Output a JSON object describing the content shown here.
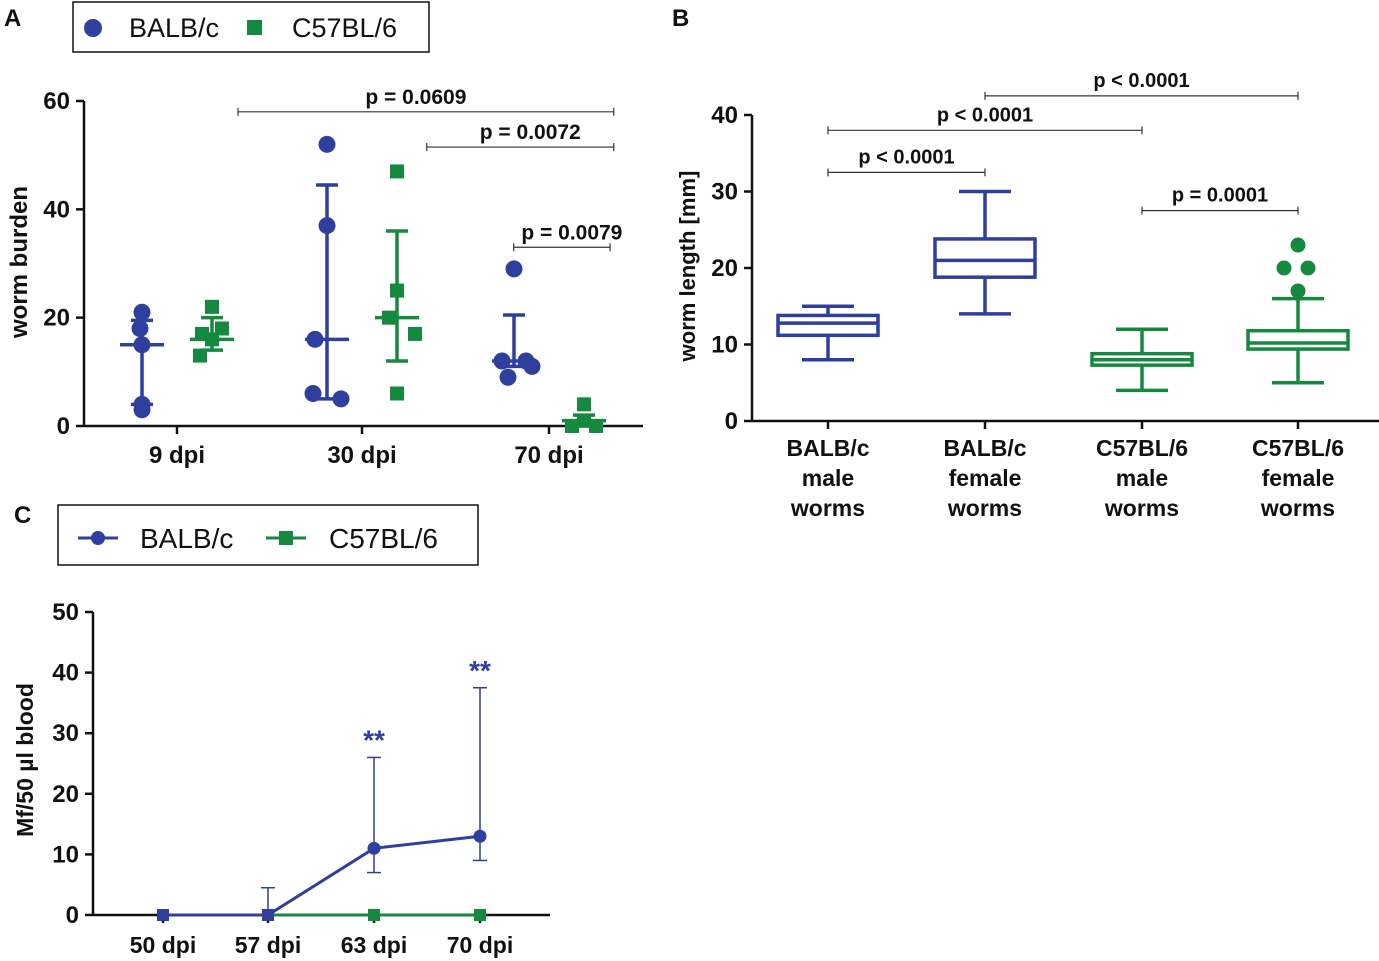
{
  "colors": {
    "balb": "#2E3F9E",
    "c57": "#15893E",
    "axis": "#111111",
    "bracket": "#333333"
  },
  "chart_data": [
    {
      "panel": "A",
      "type": "scatter",
      "legend": [
        "BALB/c",
        "C57BL/6"
      ],
      "ylabel": "worm burden",
      "ylim": [
        0,
        60
      ],
      "yticks": [
        "0",
        "20",
        "40",
        "60"
      ],
      "categories": [
        "9 dpi",
        "30 dpi",
        "70 dpi"
      ],
      "series": [
        {
          "name": "BALB/c",
          "points": [
            [
              21,
              18,
              15,
              4,
              3
            ],
            [
              52,
              37,
              16,
              6,
              5
            ],
            [
              29,
              12,
              12,
              11,
              9
            ]
          ],
          "median": [
            15,
            16,
            12
          ],
          "err": [
            [
              4,
              19.5
            ],
            [
              5,
              44.5
            ],
            [
              11,
              20.5
            ]
          ]
        },
        {
          "name": "C57BL/6",
          "points": [
            [
              22,
              18,
              17,
              16,
              13
            ],
            [
              47,
              25,
              20,
              17,
              6
            ],
            [
              4,
              1,
              1,
              0,
              0
            ]
          ],
          "median": [
            16,
            20,
            1
          ],
          "err": [
            [
              14,
              20
            ],
            [
              12,
              36
            ],
            [
              0,
              2
            ]
          ]
        }
      ],
      "comparisons": [
        {
          "text": "p = 0.0609",
          "x1": -0.67,
          "x2": 1.35,
          "y": 58
        },
        {
          "text": "p = 0.0072",
          "x1": 0.35,
          "x2": 1.35,
          "y": 51.5
        },
        {
          "text": "p = 0.0079",
          "x1": 0.82,
          "x2": 1.33,
          "y": 33
        }
      ]
    },
    {
      "panel": "B",
      "type": "boxplot",
      "ylabel": "worm length [mm]",
      "ylim": [
        0,
        40
      ],
      "yticks": [
        "0",
        "10",
        "20",
        "30",
        "40"
      ],
      "categories": [
        [
          "BALB/c",
          "male",
          "worms"
        ],
        [
          "BALB/c",
          "female",
          "worms"
        ],
        [
          "C57BL/6",
          "male",
          "worms"
        ],
        [
          "C57BL/6",
          "female",
          "worms"
        ]
      ],
      "boxes": [
        {
          "min": 8,
          "q1": 11.2,
          "median": 12.8,
          "q3": 13.8,
          "max": 15,
          "series": "BALB/c"
        },
        {
          "min": 14,
          "q1": 18.8,
          "median": 21,
          "q3": 23.8,
          "max": 30,
          "series": "BALB/c"
        },
        {
          "min": 4,
          "q1": 7.3,
          "median": 8,
          "q3": 8.8,
          "max": 12,
          "series": "C57BL/6"
        },
        {
          "min": 5,
          "q1": 9.4,
          "median": 10.2,
          "q3": 11.8,
          "max": 16,
          "series": "C57BL/6",
          "outliers": [
            [
              0,
              23
            ],
            [
              -0.14,
              20
            ],
            [
              0.1,
              20
            ],
            [
              0,
              17
            ]
          ]
        }
      ],
      "comparisons": [
        {
          "text": "p < 0.0001",
          "x1": 1,
          "x2": 3,
          "y": 42.5
        },
        {
          "text": "p < 0.0001",
          "x1": 0,
          "x2": 2,
          "y": 38
        },
        {
          "text": "p < 0.0001",
          "x1": 0,
          "x2": 1,
          "y": 32.5
        },
        {
          "text": "p = 0.0001",
          "x1": 2,
          "x2": 3,
          "y": 27.5
        }
      ]
    },
    {
      "panel": "C",
      "type": "line",
      "legend": [
        "BALB/c",
        "C57BL/6"
      ],
      "ylabel": "Mf/50 µl blood",
      "ylim": [
        0,
        50
      ],
      "yticks": [
        "0",
        "10",
        "20",
        "30",
        "40",
        "50"
      ],
      "categories": [
        "50 dpi",
        "57 dpi",
        "63 dpi",
        "70 dpi"
      ],
      "series": [
        {
          "name": "BALB/c",
          "values": [
            0,
            0,
            11,
            13
          ],
          "err_low": [
            0,
            0,
            7,
            9
          ],
          "err_high": [
            0,
            4.5,
            26,
            37.5
          ]
        },
        {
          "name": "C57BL/6",
          "values": [
            0,
            0,
            0,
            0
          ]
        }
      ],
      "annotations": [
        {
          "text": "**",
          "index": 2,
          "y": 26
        },
        {
          "text": "**",
          "index": 3,
          "y": 37.5
        }
      ]
    }
  ],
  "panel_labels": {
    "a": "A",
    "b": "B",
    "c": "C"
  },
  "legends": {
    "a": {
      "balb": "BALB/c",
      "c57": "C57BL/6"
    },
    "c": {
      "balb": "BALB/c",
      "c57": "C57BL/6"
    }
  }
}
